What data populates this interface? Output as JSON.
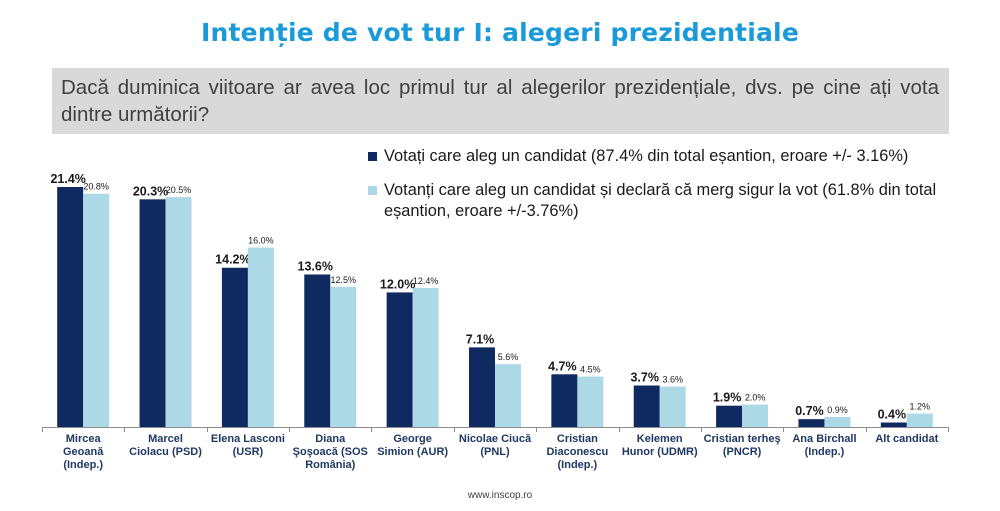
{
  "title": "Intenție de vot tur I: alegeri prezidentiale",
  "question": "Dacă duminica viitoare ar avea loc primul tur al alegerilor prezidențiale, dvs. pe cine ați vota dintre următorii?",
  "footer": "www.inscop.ro",
  "colors": {
    "series1": "#0f2a60",
    "series2": "#add8e6",
    "title": "#1a9ad9",
    "question_bg": "#d9d9d9"
  },
  "chart_data": {
    "type": "bar",
    "categories": [
      "Mircea Geoană (Indep.)",
      "Marcel Ciolacu (PSD)",
      "Elena Lasconi (USR)",
      "Diana Şoşoacă (SOS România)",
      "George Simion (AUR)",
      "Nicolae Ciucă (PNL)",
      "Cristian Diaconescu (Indep.)",
      "Kelemen Hunor (UDMR)",
      "Cristian terheş (PNCR)",
      "Ana Birchall (Indep.)",
      "Alt candidat"
    ],
    "category_lines": [
      [
        "Mircea",
        "Geoană",
        "(Indep.)"
      ],
      [
        "Marcel",
        "Ciolacu (PSD)"
      ],
      [
        "Elena Lasconi",
        "(USR)"
      ],
      [
        "Diana",
        "Şoşoacă (SOS",
        "România)"
      ],
      [
        "George",
        "Simion (AUR)"
      ],
      [
        "Nicolae   Ciucă",
        "(PNL)"
      ],
      [
        "Cristian",
        "Diaconescu",
        "(Indep.)"
      ],
      [
        "Kelemen",
        "Hunor (UDMR)"
      ],
      [
        "Cristian terheş",
        "(PNCR)"
      ],
      [
        "Ana Birchall",
        "(Indep.)"
      ],
      [
        "Alt candidat"
      ]
    ],
    "series": [
      {
        "name": "Votați care aleg un candidat (87.4% din total eșantion, eroare +/- 3.16%)",
        "values": [
          21.4,
          20.3,
          14.2,
          13.6,
          12.0,
          7.1,
          4.7,
          3.7,
          1.9,
          0.7,
          0.4
        ],
        "labels": [
          "21.4%",
          "20.3%",
          "14.2%",
          "13.6%",
          "12.0%",
          "7.1%",
          "4.7%",
          "3.7%",
          "1.9%",
          "0.7%",
          "0.4%"
        ]
      },
      {
        "name": "Votanți care aleg un candidat și declară că merg sigur la vot (61.8% din total eșantion, eroare +/-3.76%)",
        "values": [
          20.8,
          20.5,
          16.0,
          12.5,
          12.4,
          5.6,
          4.5,
          3.6,
          2.0,
          0.9,
          1.2
        ],
        "labels": [
          "20.8%",
          "20.5%",
          "16.0%",
          "12.5%",
          "12.4%",
          "5.6%",
          "4.5%",
          "3.6%",
          "2.0%",
          "0.9%",
          "1.2%"
        ]
      }
    ],
    "ylim": [
      0,
      21.4
    ],
    "legend_position": "top-right",
    "grid": false
  }
}
